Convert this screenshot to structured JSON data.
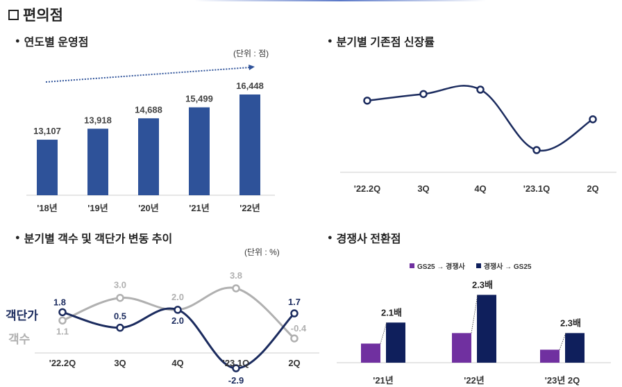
{
  "page": {
    "title": "편의점"
  },
  "colors": {
    "navy": "#1b2b5e",
    "bar_blue": "#2e5299",
    "gray": "#b0b0b0",
    "purple": "#7030a0",
    "dark_navy": "#0f1f5c"
  },
  "sections": {
    "stores": "연도별 운영점",
    "growth": "분기별 기존점 신장률",
    "customers": "분기별 객수 및 객단가 변동 추이",
    "conversion": "경쟁사 전환점"
  },
  "units": {
    "stores": "(단위 : 점)",
    "customers": "(단위 : %)"
  },
  "side_labels": {
    "price": "객단가",
    "count": "객수"
  },
  "chart_data": [
    {
      "id": "stores",
      "type": "bar",
      "title": "연도별 운영점",
      "categories": [
        "'18년",
        "'19년",
        "'20년",
        "'21년",
        "'22년"
      ],
      "values": [
        13107,
        13918,
        14688,
        15499,
        16448
      ],
      "value_labels": [
        "13,107",
        "13,918",
        "14,688",
        "15,499",
        "16,448"
      ],
      "trend_arrow": true
    },
    {
      "id": "growth",
      "type": "line",
      "title": "분기별 기존점 신장률",
      "categories": [
        "'22.2Q",
        "3Q",
        "4Q",
        "'23.1Q",
        "2Q"
      ],
      "values": [
        4.0,
        4.6,
        5.0,
        -0.5,
        2.3
      ],
      "data_labels": false
    },
    {
      "id": "customers",
      "type": "line",
      "title": "분기별 객수 및 객단가 변동 추이",
      "categories": [
        "'22.2Q",
        "3Q",
        "4Q",
        "'23.1Q",
        "2Q"
      ],
      "series": [
        {
          "name": "객수",
          "values": [
            1.1,
            3.0,
            2.0,
            3.8,
            -0.4
          ],
          "labels": [
            "1.1",
            "3.0",
            "2.0",
            "3.8",
            "-0.4"
          ]
        },
        {
          "name": "객단가",
          "values": [
            1.8,
            0.5,
            2.0,
            -2.9,
            1.7
          ],
          "labels": [
            "1.8",
            "0.5",
            "2.0",
            "-2.9",
            "1.7"
          ]
        }
      ]
    },
    {
      "id": "conversion",
      "type": "bar",
      "title": "경쟁사 전환점",
      "categories": [
        "'21년",
        "'22년",
        "'23년 2Q"
      ],
      "series": [
        {
          "name": "GS25 → 경쟁사",
          "values": [
            1.0,
            1.55,
            0.68
          ]
        },
        {
          "name": "경쟁사 → GS25",
          "values": [
            2.1,
            3.55,
            1.55
          ]
        }
      ],
      "ratio_labels": [
        "2.1배",
        "2.3배",
        "2.3배"
      ]
    }
  ]
}
